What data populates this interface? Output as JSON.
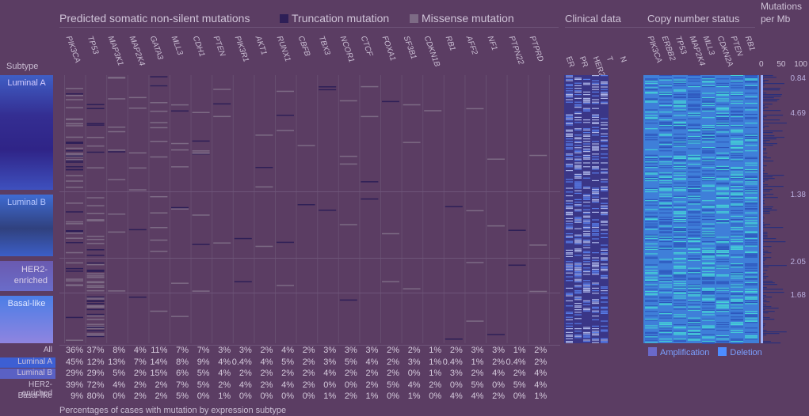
{
  "headers": {
    "mutations": "Predicted somatic non-silent mutations",
    "truncation": "Truncation mutation",
    "missense": "Missense mutation",
    "clinical": "Clinical data",
    "copy_number": "Copy number status",
    "mut_rate": "Mutations per Mb",
    "subtype": "Subtype",
    "footer": "Percentages of cases with mutation by expression subtype"
  },
  "colors": {
    "truncation": "#2e1f57",
    "missense": "#7d6b85",
    "amplification": "#6a69c9",
    "deletion": "#4d8cff"
  },
  "mut_genes": [
    "PIK3CA",
    "TP53",
    "MAP3K1",
    "MAP2K4",
    "GATA3",
    "MLL3",
    "CDH1",
    "PTEN",
    "PIK3R1",
    "AKT1",
    "RUNX1",
    "CBFB",
    "TBX3",
    "NCOR1",
    "CTCF",
    "FOXA1",
    "SF3B1",
    "CDKN1B",
    "RB1",
    "AFF2",
    "NF1",
    "PTPN22",
    "PTPRD"
  ],
  "clinical_labels": [
    "ER",
    "PR",
    "HER2",
    "T",
    "N"
  ],
  "cn_genes": [
    "PIK3CA",
    "ERBB2",
    "TP53",
    "MAP2K4",
    "MLL3",
    "CDKN2A",
    "PTEN",
    "RB1"
  ],
  "mut_axis": {
    "ticks": [
      "0",
      "50",
      "100"
    ],
    "medians": [
      "0.84",
      "4.69",
      "1.38",
      "2.05",
      "1.68"
    ]
  },
  "cn_legend": {
    "amplification": "Amplification",
    "deletion": "Deletion"
  },
  "subtypes": [
    {
      "name": "Luminal A"
    },
    {
      "name": "Luminal B"
    },
    {
      "name": "HER2-enriched"
    },
    {
      "name": "Basal-like"
    }
  ],
  "chart_data": {
    "type": "table",
    "title": "Predicted somatic non-silent mutations",
    "columns": [
      "PIK3CA",
      "TP53",
      "MAP3K1",
      "MAP2K4",
      "GATA3",
      "MLL3",
      "CDH1",
      "PTEN",
      "PIK3R1",
      "AKT1",
      "RUNX1",
      "CBFB",
      "TBX3",
      "NCOR1",
      "CTCF",
      "FOXA1",
      "SF3B1",
      "CDKN1B",
      "RB1",
      "AFF2",
      "NF1",
      "PTPN22",
      "PTPRD"
    ],
    "rows": [
      {
        "label": "All",
        "values": [
          "36%",
          "37%",
          "8%",
          "4%",
          "11%",
          "7%",
          "7%",
          "3%",
          "3%",
          "2%",
          "4%",
          "2%",
          "3%",
          "3%",
          "3%",
          "2%",
          "2%",
          "1%",
          "2%",
          "3%",
          "3%",
          "1%",
          "2%"
        ]
      },
      {
        "label": "Luminal A",
        "values": [
          "45%",
          "12%",
          "13%",
          "7%",
          "14%",
          "8%",
          "9%",
          "4%",
          "0.4%",
          "4%",
          "5%",
          "2%",
          "3%",
          "5%",
          "4%",
          "2%",
          "3%",
          "1%",
          "0.4%",
          "1%",
          "2%",
          "0.4%",
          "2%"
        ]
      },
      {
        "label": "Luminal B",
        "values": [
          "29%",
          "29%",
          "5%",
          "2%",
          "15%",
          "6%",
          "5%",
          "4%",
          "2%",
          "2%",
          "2%",
          "2%",
          "4%",
          "2%",
          "2%",
          "2%",
          "0%",
          "1%",
          "3%",
          "2%",
          "4%",
          "2%",
          "4%"
        ]
      },
      {
        "label": "HER2-enriched",
        "values": [
          "39%",
          "72%",
          "4%",
          "2%",
          "2%",
          "7%",
          "5%",
          "2%",
          "4%",
          "2%",
          "4%",
          "2%",
          "0%",
          "0%",
          "2%",
          "5%",
          "4%",
          "2%",
          "0%",
          "5%",
          "0%",
          "5%",
          "4%"
        ]
      },
      {
        "label": "Basal-like",
        "values": [
          "9%",
          "80%",
          "0%",
          "2%",
          "2%",
          "5%",
          "0%",
          "1%",
          "0%",
          "0%",
          "0%",
          "0%",
          "1%",
          "2%",
          "1%",
          "0%",
          "1%",
          "0%",
          "4%",
          "4%",
          "2%",
          "0%",
          "1%"
        ]
      }
    ]
  }
}
